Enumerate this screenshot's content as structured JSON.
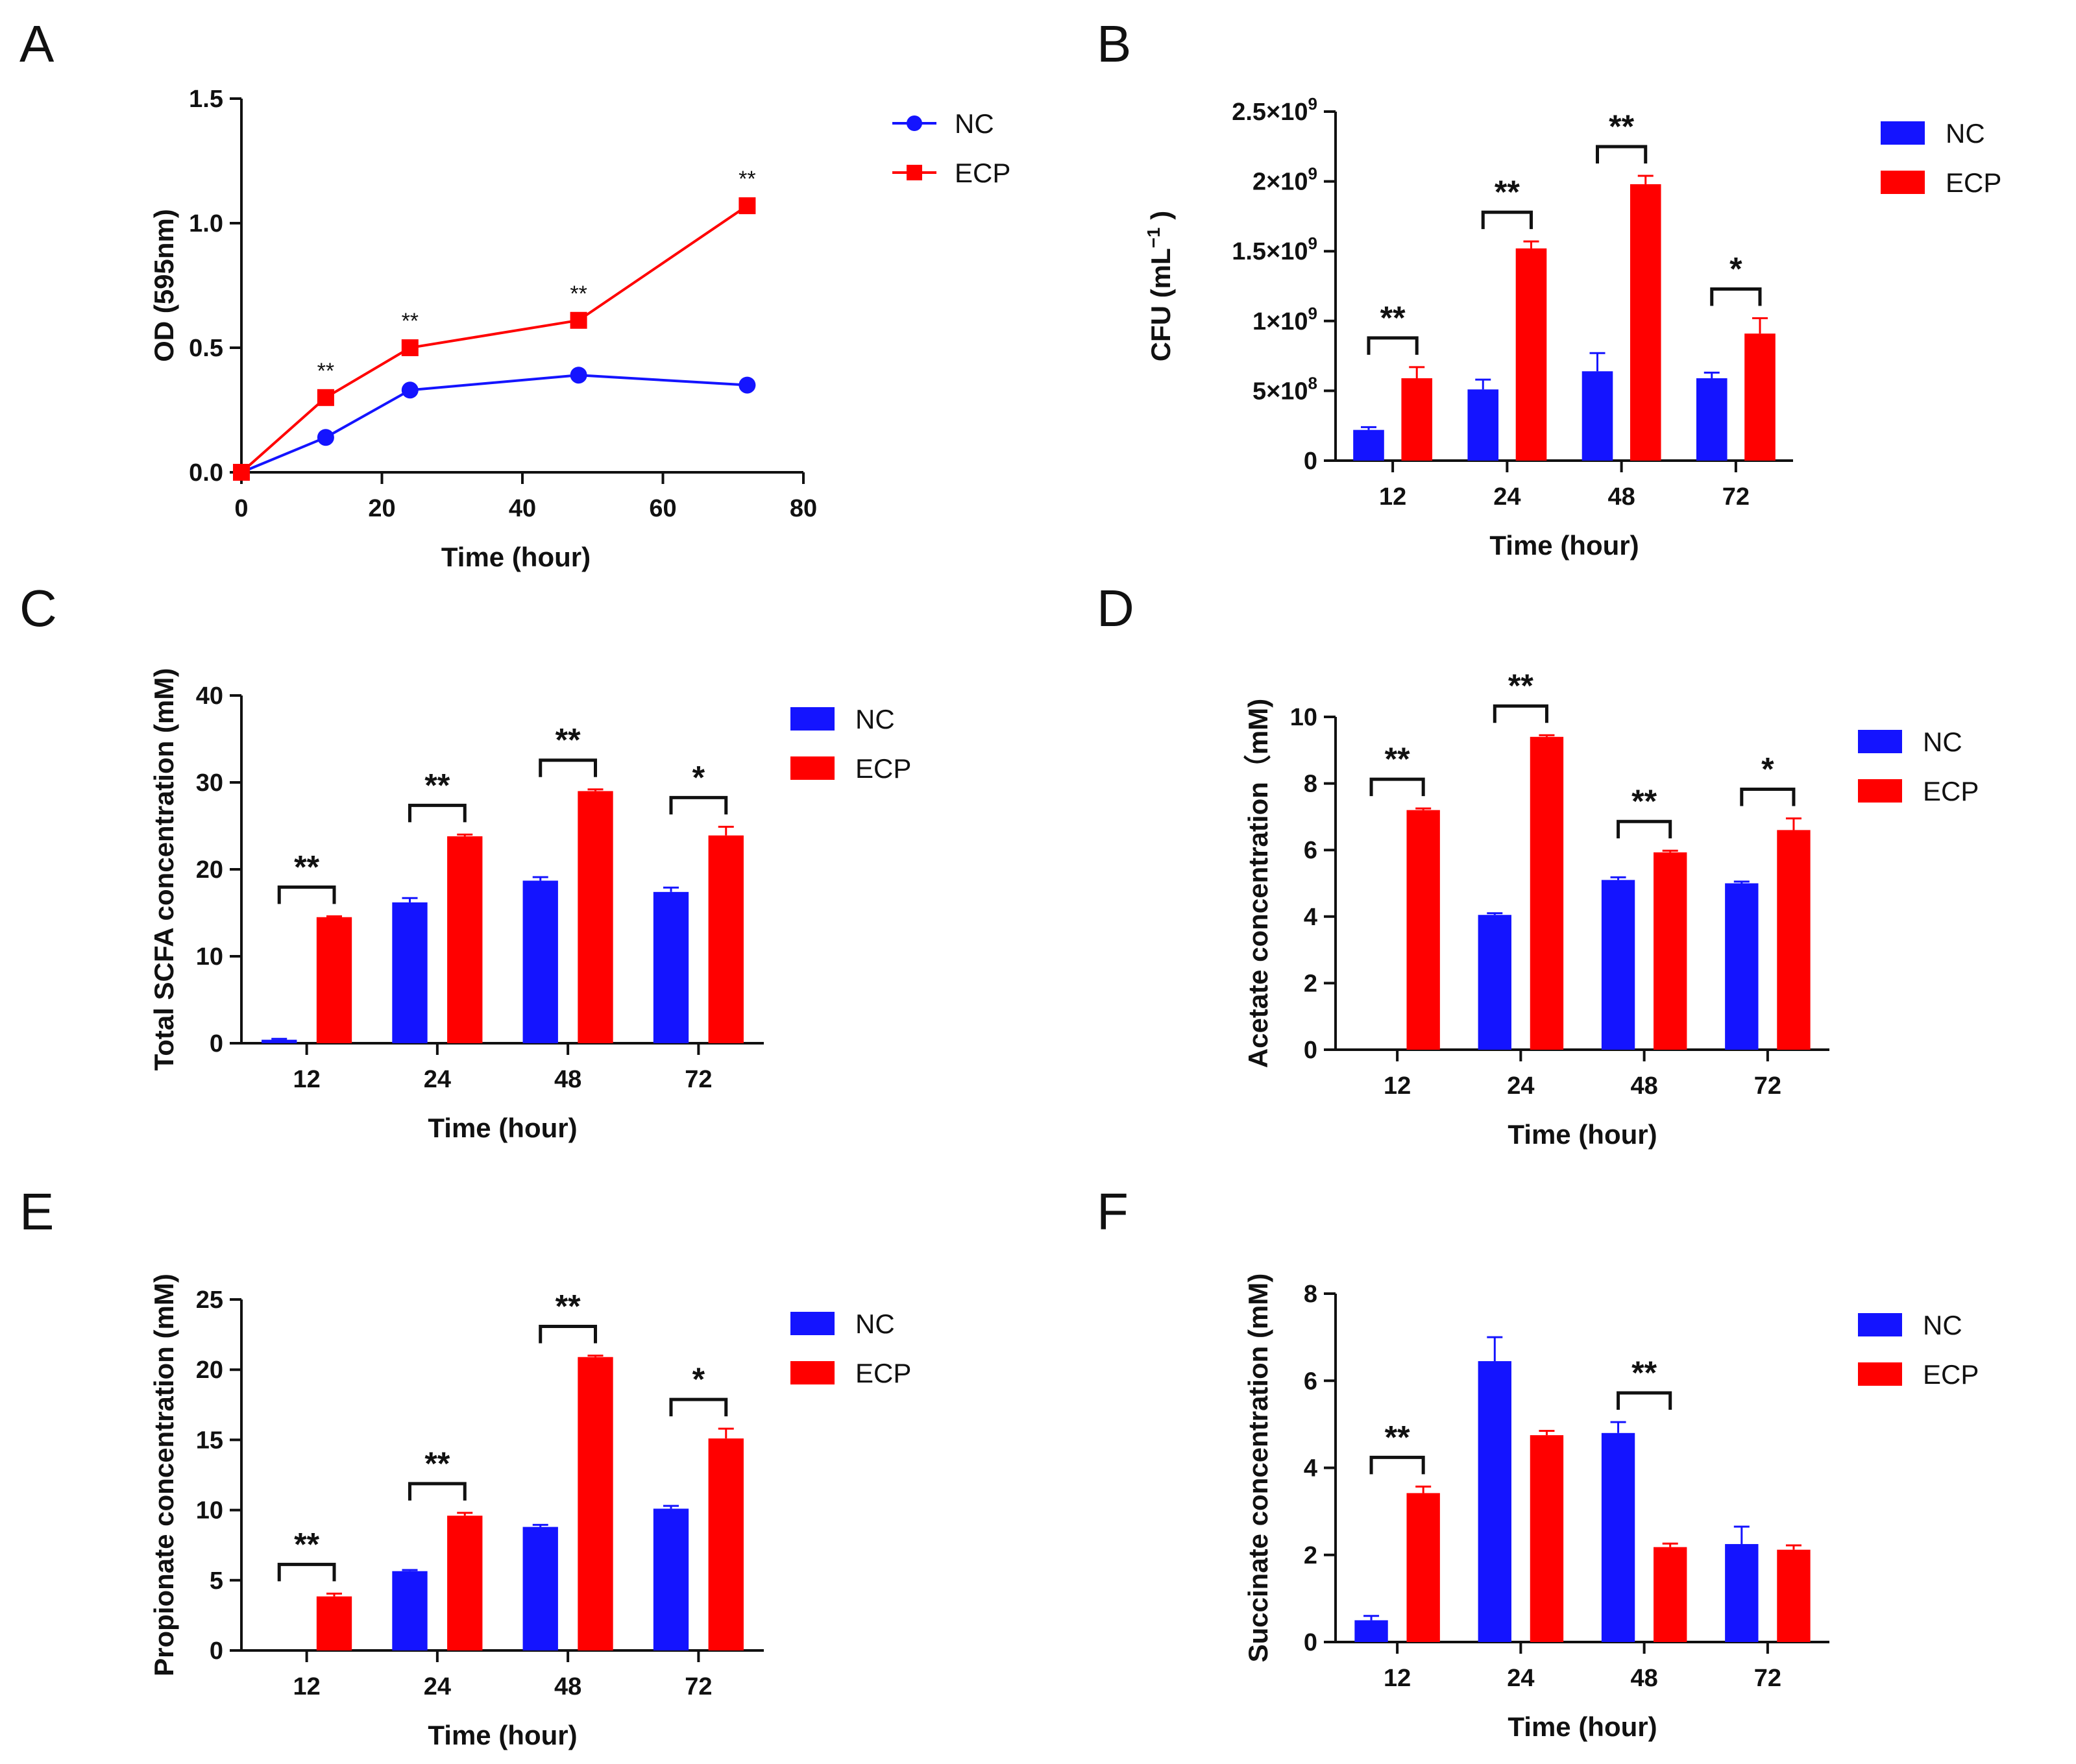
{
  "colors": {
    "nc": "#1414ff",
    "ecp": "#ff0000",
    "axis": "#111111"
  },
  "chart_data": [
    {
      "panel": "A",
      "type": "line",
      "xlabel": "Time (hour)",
      "ylabel": "OD (595nm)",
      "xlim": [
        0,
        80
      ],
      "ylim": [
        0,
        1.5
      ],
      "xticks": [
        "0",
        "20",
        "40",
        "60",
        "80"
      ],
      "yticks": [
        "0.0",
        "0.5",
        "1.0",
        "1.5"
      ],
      "x": [
        0,
        12,
        24,
        48,
        72
      ],
      "series": [
        {
          "name": "NC",
          "values": [
            0.0,
            0.14,
            0.33,
            0.39,
            0.35
          ]
        },
        {
          "name": "ECP",
          "values": [
            0.0,
            0.3,
            0.5,
            0.61,
            1.07
          ]
        }
      ],
      "significance": [
        "",
        "**",
        "**",
        "**",
        "**"
      ]
    },
    {
      "panel": "B",
      "type": "bar",
      "xlabel": "Time (hour)",
      "ylabel": "CFU (mL",
      "ylabel_sup": "−1",
      "ylabel_end": ")",
      "ylim": [
        0,
        2500000000
      ],
      "yticks": [
        {
          "base": "0",
          "exp": ""
        },
        {
          "base": "5×10",
          "exp": "8"
        },
        {
          "base": "1×10",
          "exp": "9"
        },
        {
          "base": "1.5×10",
          "exp": "9"
        },
        {
          "base": "2×10",
          "exp": "9"
        },
        {
          "base": "2.5×10",
          "exp": "9"
        }
      ],
      "categories": [
        "12",
        "24",
        "48",
        "72"
      ],
      "series": [
        {
          "name": "NC",
          "values": [
            220000000,
            510000000,
            640000000,
            590000000
          ],
          "errors": [
            20000000,
            70000000,
            130000000,
            40000000
          ]
        },
        {
          "name": "ECP",
          "values": [
            590000000,
            1520000000,
            1980000000,
            910000000
          ],
          "errors": [
            80000000,
            50000000,
            60000000,
            110000000
          ]
        }
      ],
      "significance": [
        "**",
        "**",
        "**",
        "*"
      ]
    },
    {
      "panel": "C",
      "type": "bar",
      "xlabel": "Time (hour)",
      "ylabel": "Total SCFA concentration (mM)",
      "ylim": [
        0,
        40
      ],
      "yticks": [
        "0",
        "10",
        "20",
        "30",
        "40"
      ],
      "categories": [
        "12",
        "24",
        "48",
        "72"
      ],
      "series": [
        {
          "name": "NC",
          "values": [
            0.4,
            16.2,
            18.7,
            17.4
          ],
          "errors": [
            0.1,
            0.5,
            0.4,
            0.5
          ]
        },
        {
          "name": "ECP",
          "values": [
            14.5,
            23.8,
            29.0,
            23.9
          ],
          "errors": [
            0.1,
            0.2,
            0.2,
            1.0
          ]
        }
      ],
      "significance": [
        "**",
        "**",
        "**",
        "*"
      ]
    },
    {
      "panel": "D",
      "type": "bar",
      "xlabel": "Time (hour)",
      "ylabel": "Acetate concentration（mM)",
      "ylim": [
        0,
        10
      ],
      "yticks": [
        "0",
        "2",
        "4",
        "6",
        "8",
        "10"
      ],
      "categories": [
        "12",
        "24",
        "48",
        "72"
      ],
      "series": [
        {
          "name": "NC",
          "values": [
            0.0,
            4.05,
            5.1,
            5.0
          ],
          "errors": [
            0.0,
            0.05,
            0.08,
            0.05
          ]
        },
        {
          "name": "ECP",
          "values": [
            7.2,
            9.4,
            5.93,
            6.6
          ],
          "errors": [
            0.05,
            0.05,
            0.05,
            0.35
          ]
        }
      ],
      "significance": [
        "**",
        "**",
        "**",
        "*"
      ]
    },
    {
      "panel": "E",
      "type": "bar",
      "xlabel": "Time (hour)",
      "ylabel": "Propionate concentration (mM)",
      "ylim": [
        0,
        25
      ],
      "yticks": [
        "0",
        "5",
        "10",
        "15",
        "20",
        "25"
      ],
      "categories": [
        "12",
        "24",
        "48",
        "72"
      ],
      "series": [
        {
          "name": "NC",
          "values": [
            0.0,
            5.65,
            8.8,
            10.1
          ],
          "errors": [
            0.0,
            0.08,
            0.15,
            0.2
          ]
        },
        {
          "name": "ECP",
          "values": [
            3.85,
            9.6,
            20.9,
            15.1
          ],
          "errors": [
            0.2,
            0.2,
            0.1,
            0.7
          ]
        }
      ],
      "significance": [
        "**",
        "**",
        "**",
        "*"
      ]
    },
    {
      "panel": "F",
      "type": "bar",
      "xlabel": "Time (hour)",
      "ylabel": "Succinate concentration (mM)",
      "ylim": [
        0,
        8
      ],
      "yticks": [
        "0",
        "2",
        "4",
        "6",
        "8"
      ],
      "categories": [
        "12",
        "24",
        "48",
        "72"
      ],
      "series": [
        {
          "name": "NC",
          "values": [
            0.5,
            6.45,
            4.8,
            2.25
          ],
          "errors": [
            0.1,
            0.55,
            0.25,
            0.4
          ]
        },
        {
          "name": "ECP",
          "values": [
            3.42,
            4.75,
            2.18,
            2.12
          ],
          "errors": [
            0.15,
            0.1,
            0.08,
            0.1
          ]
        }
      ],
      "significance": [
        "**",
        "",
        "**",
        ""
      ]
    }
  ],
  "legend": {
    "nc": "NC",
    "ecp": "ECP"
  }
}
